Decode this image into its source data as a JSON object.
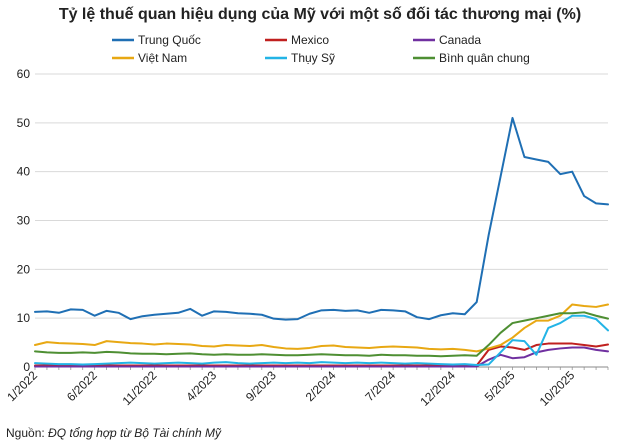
{
  "chart_data": {
    "type": "line",
    "title": "Tỷ lệ thuế quan hiệu dụng của Mỹ với một số đối tác thương mại (%)",
    "xlabel": "",
    "ylabel": "",
    "ylim": [
      0,
      60
    ],
    "yticks": [
      0,
      10,
      20,
      30,
      40,
      50,
      60
    ],
    "grid": "horizontal",
    "legend_position": "top",
    "x_tick_labels": [
      "1/2022",
      "6/2022",
      "11/2022",
      "4/2023",
      "9/2023",
      "2/2024",
      "7/2024",
      "12/2024",
      "5/2025",
      "10/2025"
    ],
    "x_tick_index": [
      0,
      5,
      10,
      15,
      20,
      25,
      30,
      35,
      40,
      45
    ],
    "n_points": 49,
    "series": [
      {
        "name": "Trung Quốc",
        "color": "#1f6fb4",
        "values": [
          11.3,
          11.4,
          11.1,
          11.8,
          11.7,
          10.5,
          11.5,
          11.1,
          9.8,
          10.4,
          10.7,
          10.9,
          11.1,
          11.9,
          10.5,
          11.4,
          11.3,
          11.0,
          10.9,
          10.7,
          9.9,
          9.7,
          9.8,
          10.9,
          11.6,
          11.7,
          11.5,
          11.6,
          11.1,
          11.7,
          11.6,
          11.4,
          10.2,
          9.8,
          10.6,
          11.0,
          10.8,
          13.3,
          27.0,
          39.0,
          51.0,
          43.0,
          42.5,
          42.0,
          39.5,
          40.0,
          35.0,
          33.5,
          33.3
        ]
      },
      {
        "name": "Mexico",
        "color": "#c0201f",
        "values": [
          0.3,
          0.3,
          0.3,
          0.3,
          0.3,
          0.3,
          0.3,
          0.3,
          0.3,
          0.3,
          0.3,
          0.3,
          0.3,
          0.3,
          0.3,
          0.3,
          0.3,
          0.3,
          0.3,
          0.3,
          0.3,
          0.3,
          0.3,
          0.3,
          0.3,
          0.3,
          0.3,
          0.3,
          0.3,
          0.3,
          0.3,
          0.3,
          0.3,
          0.3,
          0.3,
          0.3,
          0.3,
          0.3,
          3.5,
          4.2,
          4.0,
          3.5,
          4.5,
          4.8,
          4.8,
          4.8,
          4.5,
          4.2,
          4.6
        ]
      },
      {
        "name": "Canada",
        "color": "#7030a0",
        "values": [
          0.1,
          0.1,
          0.1,
          0.1,
          0.1,
          0.1,
          0.1,
          0.1,
          0.1,
          0.1,
          0.1,
          0.1,
          0.1,
          0.1,
          0.1,
          0.1,
          0.1,
          0.1,
          0.1,
          0.1,
          0.1,
          0.1,
          0.1,
          0.1,
          0.1,
          0.1,
          0.1,
          0.1,
          0.1,
          0.1,
          0.1,
          0.1,
          0.1,
          0.1,
          0.1,
          0.1,
          0.1,
          0.1,
          1.5,
          2.5,
          1.8,
          2.0,
          3.0,
          3.5,
          3.8,
          4.0,
          4.0,
          3.5,
          3.2
        ]
      },
      {
        "name": "Việt Nam",
        "color": "#e8a813",
        "values": [
          4.5,
          5.1,
          4.9,
          4.8,
          4.7,
          4.5,
          5.3,
          5.1,
          4.9,
          4.8,
          4.6,
          4.8,
          4.7,
          4.6,
          4.3,
          4.2,
          4.5,
          4.4,
          4.3,
          4.5,
          4.1,
          3.8,
          3.7,
          3.9,
          4.3,
          4.4,
          4.1,
          4.0,
          3.9,
          4.1,
          4.2,
          4.1,
          4.0,
          3.7,
          3.6,
          3.7,
          3.5,
          3.2,
          3.8,
          4.5,
          6.0,
          8.0,
          9.5,
          9.5,
          10.5,
          12.8,
          12.5,
          12.3,
          12.8
        ]
      },
      {
        "name": "Thụy Sỹ",
        "color": "#23b4e6",
        "values": [
          0.8,
          0.7,
          0.6,
          0.6,
          0.5,
          0.6,
          0.7,
          0.8,
          0.9,
          0.8,
          0.7,
          0.8,
          0.9,
          0.8,
          0.7,
          0.9,
          1.0,
          0.8,
          0.7,
          0.8,
          0.9,
          0.8,
          0.9,
          0.8,
          1.0,
          0.9,
          0.8,
          0.9,
          0.8,
          0.9,
          0.8,
          0.7,
          0.8,
          0.7,
          0.6,
          0.5,
          0.6,
          0.4,
          0.5,
          3.0,
          5.5,
          5.3,
          2.5,
          8.0,
          9.0,
          10.5,
          10.5,
          9.8,
          7.5
        ]
      },
      {
        "name": "Bình quân chung",
        "color": "#4e8f33",
        "values": [
          3.2,
          3.0,
          2.9,
          2.9,
          3.0,
          2.9,
          3.1,
          3.0,
          2.8,
          2.7,
          2.7,
          2.6,
          2.7,
          2.8,
          2.6,
          2.5,
          2.6,
          2.5,
          2.5,
          2.6,
          2.5,
          2.4,
          2.4,
          2.5,
          2.6,
          2.5,
          2.4,
          2.4,
          2.3,
          2.5,
          2.4,
          2.4,
          2.3,
          2.3,
          2.2,
          2.3,
          2.4,
          2.3,
          4.5,
          7.0,
          9.0,
          9.5,
          10.0,
          10.5,
          11.0,
          11.0,
          11.2,
          10.5,
          9.9
        ]
      }
    ]
  },
  "source_note": {
    "prefix": "Nguồn:",
    "text": "ĐQ tổng hợp từ Bộ Tài chính Mỹ"
  }
}
